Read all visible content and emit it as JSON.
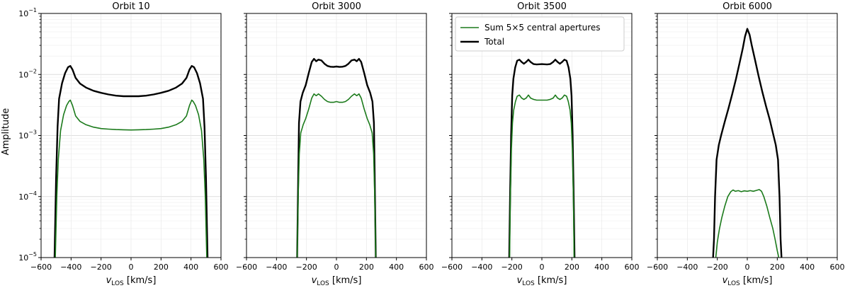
{
  "chart_data": {
    "type": "line",
    "y_scale": "log",
    "xlim": [
      -600,
      600
    ],
    "ylim": [
      1e-05,
      0.1
    ],
    "x_ticks": [
      "−600",
      "−400",
      "−200",
      "0",
      "200",
      "400",
      "600"
    ],
    "y_ticks": [
      {
        "base": "10",
        "exp": "−1"
      },
      {
        "base": "10",
        "exp": "−2"
      },
      {
        "base": "10",
        "exp": "−3"
      },
      {
        "base": "10",
        "exp": "−4"
      },
      {
        "base": "10",
        "exp": "−5"
      }
    ],
    "ylabel": "Amplitude",
    "xlabel_main": "v",
    "xlabel_sub": "LOS",
    "xlabel_unit": " [km/s]",
    "legend": [
      {
        "label": "Sum 5×5 central apertures",
        "color": "#1b7a1b"
      },
      {
        "label": "Total",
        "color": "#000000"
      }
    ],
    "grid": true,
    "panels": [
      {
        "title": "Orbit 10",
        "series": [
          {
            "name": "Total",
            "color": "#000000",
            "x": [
              -510,
              -500,
              -490,
              -480,
              -460,
              -440,
              -420,
              -405,
              -390,
              -370,
              -340,
              -300,
              -250,
              -200,
              -150,
              -100,
              -50,
              0,
              50,
              100,
              150,
              200,
              250,
              300,
              340,
              370,
              390,
              405,
              420,
              440,
              460,
              480,
              490,
              500,
              510
            ],
            "y": [
              1e-05,
              0.0002,
              0.0014,
              0.004,
              0.0072,
              0.0105,
              0.0132,
              0.0138,
              0.012,
              0.0088,
              0.0071,
              0.0061,
              0.0054,
              0.005,
              0.0047,
              0.0045,
              0.0044,
              0.0044,
              0.0044,
              0.0045,
              0.0047,
              0.005,
              0.0054,
              0.0061,
              0.0071,
              0.0088,
              0.012,
              0.0138,
              0.0132,
              0.0105,
              0.0072,
              0.004,
              0.0014,
              0.0002,
              1e-05
            ]
          },
          {
            "name": "Sum 5×5 central apertures",
            "color": "#1b7a1b",
            "x": [
              -505,
              -495,
              -485,
              -470,
              -450,
              -430,
              -415,
              -405,
              -390,
              -370,
              -340,
              -300,
              -250,
              -200,
              -150,
              -100,
              -50,
              0,
              50,
              100,
              150,
              200,
              250,
              300,
              340,
              370,
              390,
              405,
              415,
              430,
              450,
              470,
              485,
              495,
              505
            ],
            "y": [
              1e-05,
              0.0001,
              0.0004,
              0.0012,
              0.0022,
              0.0031,
              0.0036,
              0.0038,
              0.0031,
              0.0021,
              0.0017,
              0.0015,
              0.00137,
              0.0013,
              0.00127,
              0.00125,
              0.00124,
              0.00123,
              0.00124,
              0.00125,
              0.00127,
              0.0013,
              0.00137,
              0.0015,
              0.0017,
              0.0021,
              0.0031,
              0.0038,
              0.0036,
              0.0031,
              0.0022,
              0.0012,
              0.0004,
              0.0001,
              1e-05
            ]
          }
        ]
      },
      {
        "title": "Orbit 3000",
        "series": [
          {
            "name": "Total",
            "color": "#000000",
            "x": [
              -262,
              -255,
              -250,
              -240,
              -225,
              -205,
              -185,
              -165,
              -150,
              -135,
              -120,
              -100,
              -80,
              -60,
              -40,
              -20,
              0,
              20,
              40,
              60,
              80,
              100,
              120,
              135,
              150,
              165,
              185,
              205,
              225,
              240,
              250,
              255,
              262
            ],
            "y": [
              1e-05,
              0.0002,
              0.0016,
              0.0036,
              0.005,
              0.0067,
              0.0105,
              0.016,
              0.018,
              0.0165,
              0.0175,
              0.017,
              0.015,
              0.0138,
              0.0134,
              0.0133,
              0.0135,
              0.0133,
              0.0134,
              0.0138,
              0.015,
              0.017,
              0.0175,
              0.0165,
              0.018,
              0.016,
              0.0105,
              0.0067,
              0.005,
              0.0036,
              0.0016,
              0.0002,
              1e-05
            ]
          },
          {
            "name": "Sum 5×5 central apertures",
            "color": "#1b7a1b",
            "x": [
              -262,
              -255,
              -248,
              -238,
              -222,
              -205,
              -185,
              -165,
              -150,
              -135,
              -120,
              -100,
              -80,
              -60,
              -40,
              -20,
              0,
              20,
              40,
              60,
              80,
              100,
              120,
              135,
              150,
              165,
              185,
              205,
              222,
              238,
              248,
              255,
              262
            ],
            "y": [
              1e-05,
              0.0001,
              0.0005,
              0.0011,
              0.0015,
              0.0019,
              0.0027,
              0.0041,
              0.0048,
              0.0045,
              0.0048,
              0.0044,
              0.0039,
              0.0036,
              0.0035,
              0.0035,
              0.0036,
              0.0035,
              0.0035,
              0.0036,
              0.0039,
              0.0044,
              0.0048,
              0.0045,
              0.0048,
              0.0041,
              0.0027,
              0.0019,
              0.0015,
              0.0011,
              0.0005,
              0.0001,
              1e-05
            ]
          }
        ]
      },
      {
        "title": "Orbit 3500",
        "series": [
          {
            "name": "Total",
            "color": "#000000",
            "x": [
              -218,
              -212,
              -205,
              -198,
              -190,
              -178,
              -165,
              -150,
              -135,
              -120,
              -105,
              -90,
              -75,
              -55,
              -35,
              -15,
              0,
              15,
              35,
              55,
              75,
              90,
              105,
              120,
              135,
              150,
              165,
              178,
              190,
              198,
              205,
              212,
              218
            ],
            "y": [
              1e-05,
              0.0001,
              0.001,
              0.0045,
              0.0085,
              0.013,
              0.0168,
              0.0175,
              0.016,
              0.015,
              0.016,
              0.0175,
              0.016,
              0.0148,
              0.0146,
              0.0147,
              0.0148,
              0.0147,
              0.0146,
              0.0148,
              0.016,
              0.0175,
              0.016,
              0.015,
              0.016,
              0.0175,
              0.0168,
              0.013,
              0.0085,
              0.0045,
              0.001,
              0.0001,
              1e-05
            ]
          },
          {
            "name": "Sum 5×5 central apertures",
            "color": "#1b7a1b",
            "x": [
              -215,
              -210,
              -203,
              -196,
              -188,
              -176,
              -165,
              -150,
              -135,
              -120,
              -105,
              -90,
              -75,
              -55,
              -35,
              -15,
              0,
              15,
              35,
              55,
              75,
              90,
              105,
              120,
              135,
              150,
              165,
              176,
              188,
              196,
              203,
              210,
              215
            ],
            "y": [
              1e-05,
              0.0001,
              0.0006,
              0.0016,
              0.0026,
              0.0036,
              0.0044,
              0.0046,
              0.0041,
              0.0039,
              0.0041,
              0.0046,
              0.0041,
              0.0039,
              0.0038,
              0.0038,
              0.0038,
              0.0038,
              0.0038,
              0.0039,
              0.0041,
              0.0046,
              0.0041,
              0.0039,
              0.0041,
              0.0046,
              0.0044,
              0.0036,
              0.0026,
              0.0016,
              0.0006,
              0.0001,
              1e-05
            ]
          }
        ]
      },
      {
        "title": "Orbit 6000",
        "series": [
          {
            "name": "Total",
            "color": "#000000",
            "x": [
              -228,
              -222,
              -215,
              -205,
              -190,
              -175,
              -150,
              -125,
              -100,
              -75,
              -50,
              -30,
              -15,
              0,
              15,
              30,
              50,
              75,
              100,
              125,
              150,
              175,
              190,
              205,
              215,
              222,
              228
            ],
            "y": [
              1e-05,
              2e-05,
              0.0001,
              0.0004,
              0.0007,
              0.001,
              0.0017,
              0.0028,
              0.0048,
              0.0085,
              0.016,
              0.027,
              0.042,
              0.056,
              0.045,
              0.03,
              0.018,
              0.0095,
              0.0052,
              0.003,
              0.0018,
              0.001,
              0.0007,
              0.0004,
              0.0001,
              2e-05,
              1e-05
            ]
          },
          {
            "name": "Sum 5×5 central apertures",
            "color": "#1b7a1b",
            "x": [
              -210,
              -200,
              -185,
              -170,
              -150,
              -130,
              -110,
              -95,
              -80,
              -60,
              -40,
              -20,
              0,
              20,
              40,
              60,
              80,
              95,
              110,
              130,
              150,
              170,
              185,
              200,
              210
            ],
            "y": [
              1e-05,
              1.8e-05,
              3e-05,
              4.5e-05,
              7e-05,
              0.0001,
              0.00012,
              0.000128,
              0.000122,
              0.000125,
              0.00012,
              0.000124,
              0.000122,
              0.000125,
              0.000122,
              0.000126,
              0.00013,
              0.000122,
              0.0001,
              7e-05,
              4.5e-05,
              3e-05,
              2e-05,
              1.3e-05,
              1e-05
            ]
          }
        ]
      }
    ]
  }
}
